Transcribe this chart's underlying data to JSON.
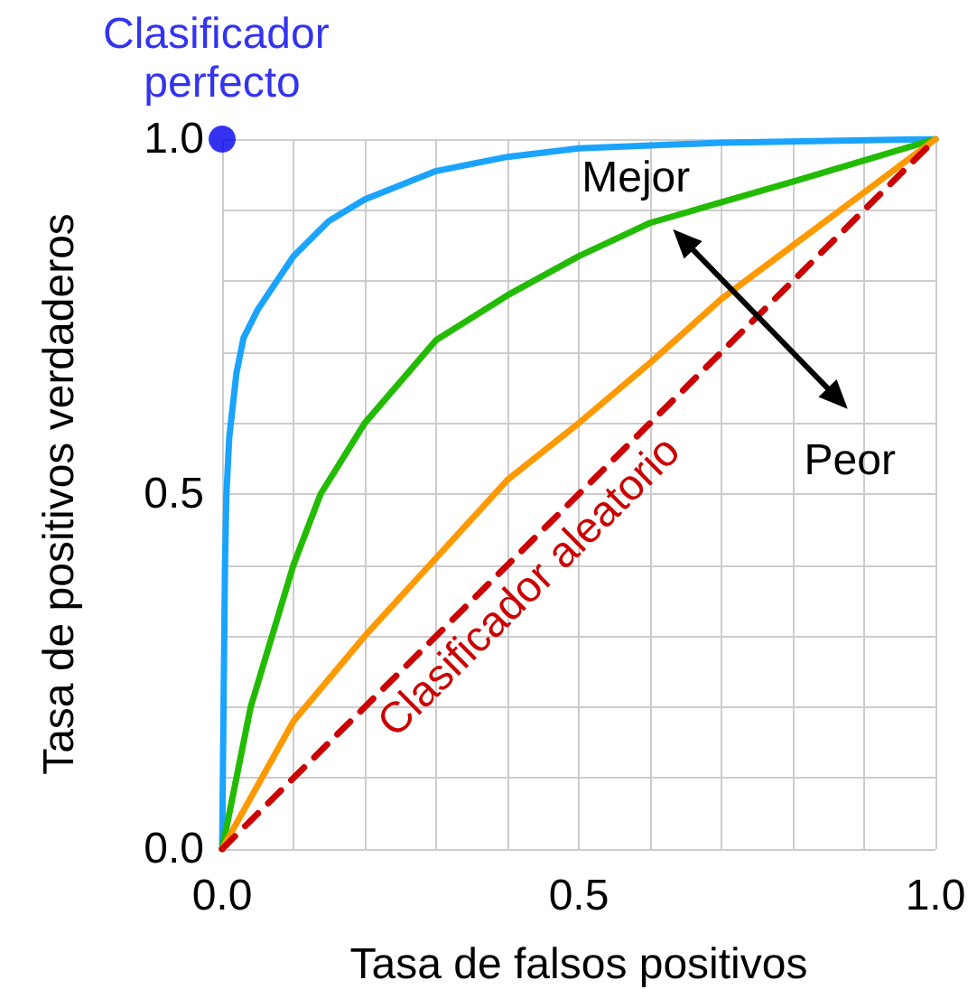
{
  "chart_data": {
    "type": "line",
    "xlabel": "Tasa de falsos positivos",
    "ylabel": "Tasa de positivos verdaderos",
    "xlim": [
      0,
      1
    ],
    "ylim": [
      0,
      1
    ],
    "xticks": [
      {
        "value": 0,
        "label": "0.0"
      },
      {
        "value": 0.1,
        "label": null
      },
      {
        "value": 0.2,
        "label": null
      },
      {
        "value": 0.3,
        "label": null
      },
      {
        "value": 0.4,
        "label": null
      },
      {
        "value": 0.5,
        "label": "0.5"
      },
      {
        "value": 0.6,
        "label": null
      },
      {
        "value": 0.7,
        "label": null
      },
      {
        "value": 0.8,
        "label": null
      },
      {
        "value": 0.9,
        "label": null
      },
      {
        "value": 1,
        "label": "1.0"
      }
    ],
    "yticks": [
      {
        "value": 0,
        "label": "0.0"
      },
      {
        "value": 0.1,
        "label": null
      },
      {
        "value": 0.2,
        "label": null
      },
      {
        "value": 0.3,
        "label": null
      },
      {
        "value": 0.4,
        "label": null
      },
      {
        "value": 0.5,
        "label": "0.5"
      },
      {
        "value": 0.6,
        "label": null
      },
      {
        "value": 0.7,
        "label": null
      },
      {
        "value": 0.8,
        "label": null
      },
      {
        "value": 0.9,
        "label": null
      },
      {
        "value": 1,
        "label": "1.0"
      }
    ],
    "grid": true,
    "legend": false,
    "marker": "none",
    "series": [
      {
        "color": "#1aa3ff",
        "x": [
          0,
          0.002,
          0.004,
          0.006,
          0.01,
          0.02,
          0.03,
          0.05,
          0.1,
          0.15,
          0.2,
          0.3,
          0.4,
          0.5,
          0.7,
          1
        ],
        "values": [
          0,
          0.2,
          0.4,
          0.5,
          0.58,
          0.67,
          0.72,
          0.76,
          0.835,
          0.885,
          0.915,
          0.955,
          0.975,
          0.987,
          0.995,
          1
        ]
      },
      {
        "color": "#22bb00",
        "x": [
          0,
          0.04,
          0.1,
          0.138,
          0.2,
          0.3,
          0.4,
          0.5,
          0.6,
          0.7,
          0.8,
          0.9,
          1
        ],
        "values": [
          0,
          0.2,
          0.4,
          0.5,
          0.6,
          0.717,
          0.78,
          0.835,
          0.882,
          0.911,
          0.94,
          0.97,
          1
        ]
      },
      {
        "color": "#ff9900",
        "x": [
          0,
          0.1,
          0.2,
          0.3,
          0.4,
          0.5,
          0.6,
          0.7,
          0.8,
          0.9,
          1
        ],
        "values": [
          0,
          0.18,
          0.3,
          0.41,
          0.52,
          0.6,
          0.685,
          0.775,
          0.85,
          0.925,
          1
        ]
      },
      {
        "name": "Clasificador aleatorio",
        "color": "#cc0000",
        "line_style": "dashed",
        "x": [
          0,
          1
        ],
        "values": [
          0,
          1
        ]
      },
      {
        "name": "Clasificador perfecto",
        "type": "scatter",
        "marker": "circle",
        "color": "#0000ee",
        "x": [
          0
        ],
        "values": [
          1
        ]
      }
    ],
    "annotations": [
      "Mejor",
      "Peor"
    ]
  }
}
